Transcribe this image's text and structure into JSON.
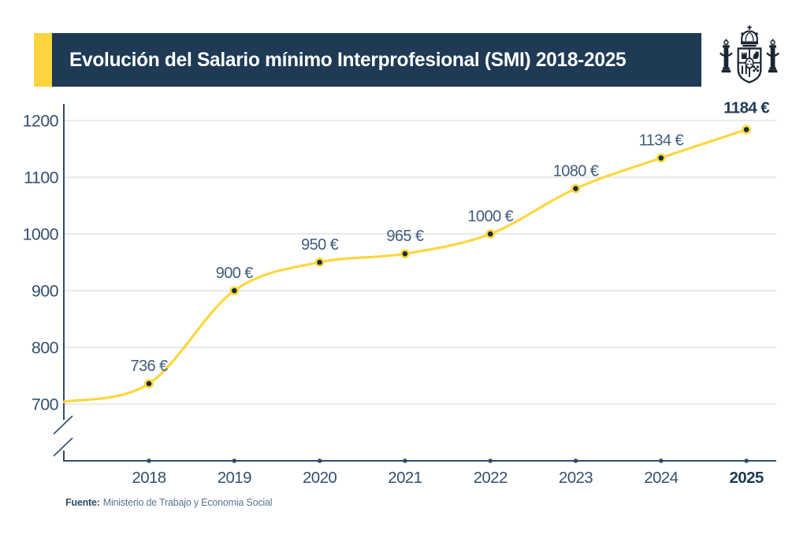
{
  "header": {
    "title": "Evolución del Salario mínimo Interprofesional (SMI) 2018-2025"
  },
  "source": {
    "label": "Fuente:",
    "text": "Ministerio de Trabajo y Economia Social"
  },
  "colors": {
    "banner_navy": "#1E3A55",
    "accent_yellow": "#FCD340",
    "line_yellow": "#FCD73E",
    "dot_navy": "#1A2B42",
    "axis_navy": "#2F4D6B",
    "tick_label_navy": "#33516F",
    "point_label_navy": "#3E5C7B",
    "bold_label_navy": "#1E3A56",
    "grid_gray": "#DADDE0",
    "emblem_navy": "#1A2534"
  },
  "chart_data": {
    "type": "line",
    "title": "Evolución del Salario mínimo Interprofesional (SMI) 2018-2025",
    "categories": [
      "2018",
      "2019",
      "2020",
      "2021",
      "2022",
      "2023",
      "2024",
      "2025"
    ],
    "values": [
      736,
      900,
      950,
      965,
      1000,
      1080,
      1134,
      1184
    ],
    "point_labels": [
      "736 €",
      "900 €",
      "950 €",
      "965 €",
      "1000 €",
      "1080 €",
      "1134 €",
      "1184 €"
    ],
    "unit": "€",
    "xlabel": "",
    "ylabel": "",
    "y_ticks": [
      700,
      800,
      900,
      1000,
      1100,
      1200
    ],
    "ylim": [
      700,
      1200
    ],
    "axis_break": true,
    "grid": "horizontal",
    "legend": "none",
    "line_start_value": 704,
    "emphasized_last_point": true
  }
}
